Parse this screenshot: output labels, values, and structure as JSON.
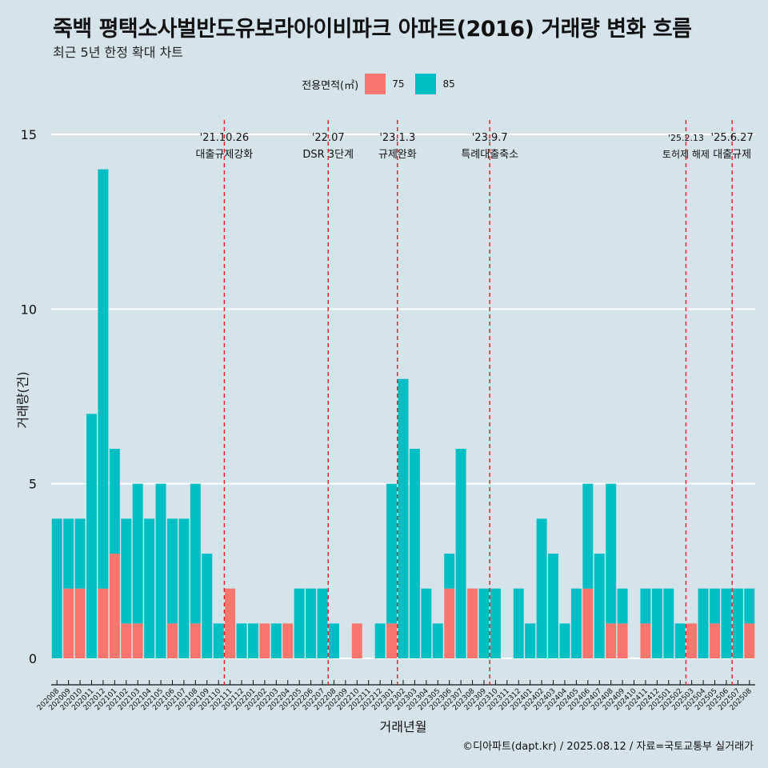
{
  "title": "죽백 평택소사벌반도유보라아이비파크 아파트(2016) 거래량 변화 흐름",
  "subtitle": "최근 5년 한정 확대 차트",
  "caption": "©디아파트(dapt.kr) / 2025.08.12 / 자료=국토교통부 실거래가",
  "legend": {
    "title": "전용면적(㎡)",
    "items": [
      {
        "label": "75",
        "color": "#f8766d"
      },
      {
        "label": "85",
        "color": "#00bfc4"
      }
    ]
  },
  "chart_data": {
    "type": "bar",
    "stacked": true,
    "xlabel": "거래년월",
    "ylabel": "거래량(건)",
    "ylim": [
      0,
      15
    ],
    "yticks": [
      0,
      5,
      10,
      15
    ],
    "grid": "horizontal",
    "legend_position": "top",
    "categories": [
      "202008",
      "202009",
      "202010",
      "202011",
      "202012",
      "202101",
      "202102",
      "202103",
      "202104",
      "202105",
      "202106",
      "202107",
      "202108",
      "202109",
      "202110",
      "202111",
      "202112",
      "202201",
      "202202",
      "202203",
      "202204",
      "202205",
      "202206",
      "202207",
      "202208",
      "202209",
      "202210",
      "202211",
      "202212",
      "202301",
      "202302",
      "202303",
      "202304",
      "202305",
      "202306",
      "202307",
      "202308",
      "202309",
      "202310",
      "202311",
      "202312",
      "202401",
      "202402",
      "202403",
      "202404",
      "202405",
      "202406",
      "202407",
      "202408",
      "202409",
      "202410",
      "202411",
      "202412",
      "202501",
      "202502",
      "202503",
      "202504",
      "202505",
      "202506",
      "202507",
      "202508"
    ],
    "series": [
      {
        "name": "75",
        "color": "#f8766d",
        "values": [
          0,
          2,
          2,
          0,
          2,
          3,
          1,
          1,
          0,
          0,
          1,
          0,
          1,
          0,
          0,
          2,
          0,
          0,
          1,
          0,
          1,
          0,
          0,
          0,
          0,
          0,
          1,
          0,
          0,
          1,
          0,
          0,
          0,
          0,
          2,
          0,
          2,
          0,
          0,
          0,
          0,
          0,
          0,
          0,
          0,
          0,
          2,
          0,
          1,
          1,
          0,
          1,
          0,
          0,
          0,
          1,
          0,
          1,
          0,
          0,
          1
        ]
      },
      {
        "name": "85",
        "color": "#00bfc4",
        "values": [
          4,
          2,
          2,
          7,
          12,
          3,
          3,
          4,
          4,
          5,
          3,
          4,
          4,
          3,
          1,
          0,
          1,
          1,
          0,
          1,
          0,
          2,
          2,
          2,
          1,
          0,
          0,
          0,
          1,
          4,
          8,
          6,
          2,
          1,
          1,
          6,
          0,
          2,
          2,
          0,
          2,
          1,
          4,
          3,
          1,
          2,
          3,
          3,
          4,
          1,
          0,
          1,
          2,
          2,
          1,
          0,
          2,
          1,
          2,
          2,
          1
        ]
      }
    ],
    "annotations": [
      {
        "after": "202110",
        "date": "'21.10.26",
        "label": "대출규제강화"
      },
      {
        "after": "202207",
        "date": "'22.07",
        "label": "DSR 3단계"
      },
      {
        "after": "202301",
        "date": "'23.1.3",
        "label": "규제완화"
      },
      {
        "after": "202309",
        "date": "'23.9.7",
        "label": "특례대출축소"
      },
      {
        "after": "202502",
        "date": "'25.2.13",
        "label": "토허제 해제"
      },
      {
        "after": "202506",
        "date": "'25.6.27",
        "label": "대출규제"
      }
    ]
  }
}
